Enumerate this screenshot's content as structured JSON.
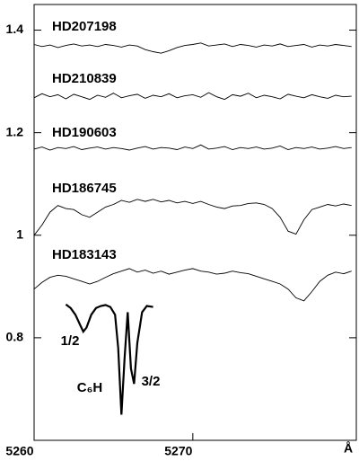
{
  "chart_data": {
    "type": "line",
    "x": [
      5260,
      5260.5,
      5261,
      5261.5,
      5262,
      5262.5,
      5263,
      5263.5,
      5264,
      5264.5,
      5265,
      5265.5,
      5266,
      5266.5,
      5267,
      5267.5,
      5268,
      5268.5,
      5269,
      5269.5,
      5270,
      5270.5,
      5271,
      5271.5,
      5272,
      5272.5,
      5273,
      5273.5,
      5274,
      5274.5,
      5275,
      5275.5,
      5276,
      5276.5,
      5277,
      5277.5,
      5278,
      5278.5,
      5279,
      5279.5,
      5280
    ],
    "xlabel": "Å",
    "series": [
      {
        "name": "HD207198",
        "color": "#000000",
        "values": [
          1.372,
          1.368,
          1.371,
          1.366,
          1.37,
          1.373,
          1.369,
          1.371,
          1.368,
          1.372,
          1.37,
          1.367,
          1.371,
          1.369,
          1.362,
          1.358,
          1.355,
          1.36,
          1.366,
          1.37,
          1.372,
          1.375,
          1.369,
          1.371,
          1.373,
          1.368,
          1.372,
          1.37,
          1.367,
          1.371,
          1.369,
          1.373,
          1.368,
          1.37,
          1.372,
          1.367,
          1.371,
          1.369,
          1.372,
          1.37,
          1.368
        ]
      },
      {
        "name": "HD210839",
        "color": "#000000",
        "values": [
          1.268,
          1.276,
          1.27,
          1.274,
          1.266,
          1.275,
          1.27,
          1.265,
          1.273,
          1.269,
          1.277,
          1.268,
          1.272,
          1.275,
          1.267,
          1.273,
          1.27,
          1.276,
          1.268,
          1.272,
          1.274,
          1.269,
          1.278,
          1.27,
          1.265,
          1.274,
          1.271,
          1.277,
          1.268,
          1.273,
          1.27,
          1.266,
          1.275,
          1.271,
          1.268,
          1.274,
          1.27,
          1.267,
          1.273,
          1.27,
          1.271
        ]
      },
      {
        "name": "HD190603",
        "color": "#000000",
        "values": [
          1.168,
          1.172,
          1.166,
          1.171,
          1.169,
          1.173,
          1.167,
          1.17,
          1.172,
          1.168,
          1.171,
          1.169,
          1.166,
          1.17,
          1.173,
          1.168,
          1.171,
          1.17,
          1.167,
          1.172,
          1.169,
          1.176,
          1.168,
          1.17,
          1.173,
          1.167,
          1.171,
          1.169,
          1.172,
          1.168,
          1.17,
          1.174,
          1.167,
          1.171,
          1.169,
          1.172,
          1.168,
          1.17,
          1.173,
          1.169,
          1.171
        ]
      },
      {
        "name": "HD186745",
        "color": "#000000",
        "values": [
          1.0,
          1.02,
          1.045,
          1.058,
          1.052,
          1.05,
          1.04,
          1.035,
          1.045,
          1.055,
          1.06,
          1.068,
          1.064,
          1.07,
          1.066,
          1.07,
          1.065,
          1.068,
          1.063,
          1.066,
          1.062,
          1.066,
          1.06,
          1.055,
          1.052,
          1.057,
          1.058,
          1.062,
          1.063,
          1.06,
          1.052,
          1.035,
          1.008,
          1.002,
          1.03,
          1.05,
          1.055,
          1.06,
          1.057,
          1.061,
          1.058
        ]
      },
      {
        "name": "HD183143",
        "color": "#000000",
        "values": [
          0.895,
          0.908,
          0.918,
          0.922,
          0.92,
          0.915,
          0.91,
          0.905,
          0.91,
          0.918,
          0.925,
          0.93,
          0.935,
          0.928,
          0.932,
          0.926,
          0.93,
          0.924,
          0.928,
          0.932,
          0.935,
          0.93,
          0.928,
          0.924,
          0.926,
          0.93,
          0.927,
          0.925,
          0.92,
          0.915,
          0.91,
          0.905,
          0.895,
          0.878,
          0.872,
          0.89,
          0.91,
          0.922,
          0.928,
          0.925,
          0.93
        ]
      },
      {
        "name": "C₆H",
        "color": "#000000",
        "x": [
          5262,
          5262.3,
          5262.6,
          5262.9,
          5263.1,
          5263.3,
          5263.6,
          5263.9,
          5264.2,
          5264.5,
          5264.8,
          5265.1,
          5265.3,
          5265.5,
          5265.7,
          5265.9,
          5266.1,
          5266.3,
          5266.5,
          5266.8,
          5267.1,
          5267.5
        ],
        "values": [
          0.865,
          0.858,
          0.845,
          0.825,
          0.812,
          0.82,
          0.845,
          0.858,
          0.862,
          0.864,
          0.86,
          0.845,
          0.78,
          0.65,
          0.76,
          0.85,
          0.74,
          0.71,
          0.79,
          0.85,
          0.862,
          0.86
        ]
      }
    ],
    "annotations": [
      "1/2",
      "3/2"
    ],
    "xlim": [
      5260,
      5280.3
    ],
    "xticks": [
      5260,
      5270
    ],
    "ylim": [
      0.6,
      1.45
    ],
    "yticks": [
      0.8,
      1,
      1.2,
      1.4
    ]
  }
}
